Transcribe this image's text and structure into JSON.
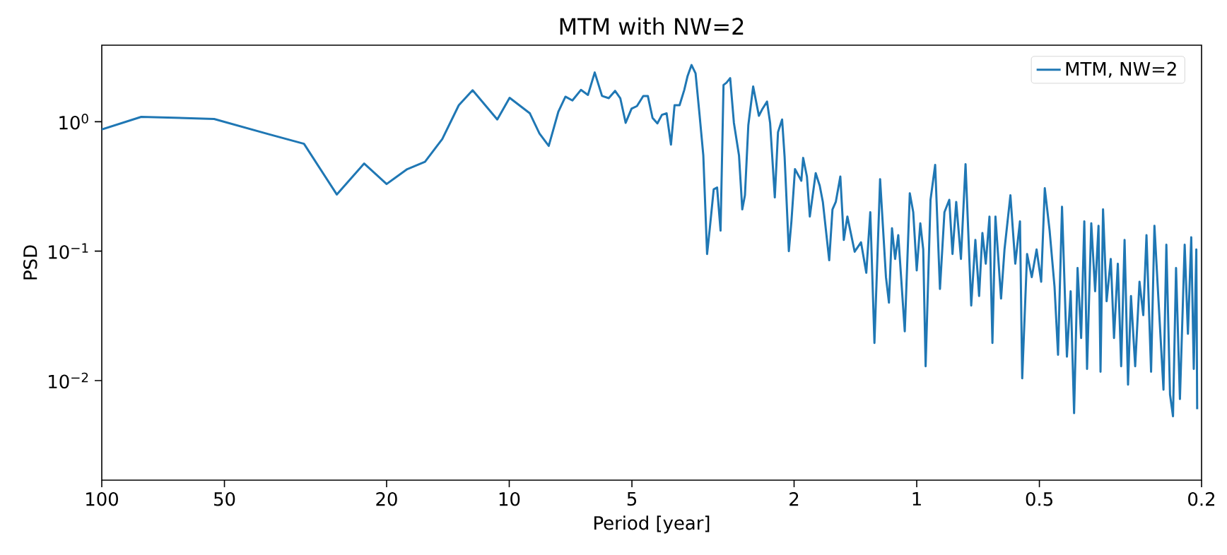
{
  "chart_data": {
    "type": "line",
    "title": "MTM with NW=2",
    "xlabel": "Period [year]",
    "ylabel": "PSD",
    "x": [
      100,
      80,
      53,
      38.9,
      31.9,
      26.5,
      22.7,
      20.0,
      17.8,
      16.1,
      14.6,
      13.3,
      12.3,
      10.7,
      9.98,
      8.9,
      8.43,
      8.0,
      7.58,
      7.28,
      7.0,
      6.67,
      6.41,
      6.17,
      5.92,
      5.7,
      5.5,
      5.34,
      5.18,
      5.01,
      4.86,
      4.69,
      4.57,
      4.45,
      4.33,
      4.22,
      4.11,
      4.01,
      3.93,
      3.82,
      3.72,
      3.65,
      3.57,
      3.49,
      3.41,
      3.34,
      3.27,
      3.22,
      3.15,
      3.09,
      3.03,
      2.98,
      2.93,
      2.87,
      2.81,
      2.73,
      2.68,
      2.64,
      2.59,
      2.52,
      2.44,
      2.39,
      2.33,
      2.29,
      2.23,
      2.19,
      2.14,
      2.11,
      2.06,
      2.03,
      1.99,
      1.92,
      1.9,
      1.86,
      1.83,
      1.77,
      1.73,
      1.7,
      1.64,
      1.61,
      1.58,
      1.54,
      1.51,
      1.48,
      1.42,
      1.37,
      1.33,
      1.3,
      1.27,
      1.23,
      1.19,
      1.17,
      1.15,
      1.13,
      1.11,
      1.07,
      1.04,
      1.02,
      1.0,
      0.98,
      0.964,
      0.951,
      0.925,
      0.901,
      0.877,
      0.855,
      0.832,
      0.817,
      0.8,
      0.779,
      0.759,
      0.735,
      0.718,
      0.703,
      0.69,
      0.677,
      0.663,
      0.652,
      0.641,
      0.621,
      0.609,
      0.589,
      0.573,
      0.558,
      0.551,
      0.536,
      0.522,
      0.508,
      0.495,
      0.485,
      0.472,
      0.459,
      0.45,
      0.44,
      0.428,
      0.419,
      0.411,
      0.403,
      0.395,
      0.388,
      0.382,
      0.373,
      0.365,
      0.358,
      0.354,
      0.349,
      0.342,
      0.334,
      0.328,
      0.321,
      0.315,
      0.309,
      0.303,
      0.298,
      0.291,
      0.284,
      0.278,
      0.273,
      0.266,
      0.261,
      0.255,
      0.248,
      0.244,
      0.239,
      0.235,
      0.231,
      0.226,
      0.22,
      0.216,
      0.212,
      0.209,
      0.206,
      0.205
    ],
    "series": [
      {
        "name": "MTM, NW=2",
        "color": "#1f77b4",
        "values": [
          0.87,
          1.09,
          1.05,
          0.8,
          0.675,
          0.274,
          0.475,
          0.33,
          0.43,
          0.49,
          0.735,
          1.34,
          1.75,
          1.04,
          1.53,
          1.16,
          0.81,
          0.65,
          1.19,
          1.56,
          1.46,
          1.76,
          1.61,
          2.4,
          1.58,
          1.52,
          1.73,
          1.52,
          0.98,
          1.26,
          1.32,
          1.58,
          1.58,
          1.07,
          0.97,
          1.13,
          1.16,
          0.665,
          1.34,
          1.34,
          1.76,
          2.26,
          2.74,
          2.36,
          1.11,
          0.548,
          0.095,
          0.15,
          0.3,
          0.31,
          0.144,
          1.92,
          2.0,
          2.17,
          0.98,
          0.548,
          0.21,
          0.27,
          0.94,
          1.87,
          1.11,
          1.26,
          1.43,
          0.98,
          0.26,
          0.83,
          1.04,
          0.535,
          0.1,
          0.17,
          0.43,
          0.35,
          0.525,
          0.377,
          0.185,
          0.4,
          0.32,
          0.24,
          0.085,
          0.21,
          0.24,
          0.377,
          0.122,
          0.185,
          0.099,
          0.117,
          0.068,
          0.2,
          0.0195,
          0.36,
          0.063,
          0.04,
          0.15,
          0.087,
          0.133,
          0.024,
          0.28,
          0.2,
          0.071,
          0.164,
          0.103,
          0.0129,
          0.249,
          0.464,
          0.051,
          0.2,
          0.249,
          0.095,
          0.24,
          0.087,
          0.47,
          0.038,
          0.122,
          0.045,
          0.138,
          0.08,
          0.185,
          0.0195,
          0.185,
          0.043,
          0.103,
          0.27,
          0.08,
          0.17,
          0.0104,
          0.095,
          0.063,
          0.103,
          0.058,
          0.306,
          0.145,
          0.053,
          0.0158,
          0.22,
          0.0153,
          0.049,
          0.0056,
          0.074,
          0.0213,
          0.17,
          0.0123,
          0.164,
          0.049,
          0.157,
          0.0117,
          0.21,
          0.041,
          0.087,
          0.0213,
          0.08,
          0.0129,
          0.122,
          0.0093,
          0.045,
          0.0129,
          0.058,
          0.032,
          0.133,
          0.0117,
          0.157,
          0.041,
          0.0085,
          0.112,
          0.0078,
          0.0053,
          0.074,
          0.0072,
          0.112,
          0.023,
          0.128,
          0.0123,
          0.103,
          0.006
        ]
      }
    ],
    "xlim": [
      100,
      0.2
    ],
    "ylim": [
      0.0017,
      3.9
    ],
    "xticks": [
      100,
      50,
      20,
      10,
      5,
      2,
      1,
      0.5,
      0.2
    ],
    "yticks": [
      {
        "value": 0.01,
        "label": "10$^{−2}$"
      },
      {
        "value": 0.1,
        "label": "10$^{−1}$"
      },
      {
        "value": 1,
        "label": "10$^{0}$"
      }
    ],
    "log": "xy",
    "legend": "top right",
    "marker": "none",
    "line_style": "solid"
  }
}
